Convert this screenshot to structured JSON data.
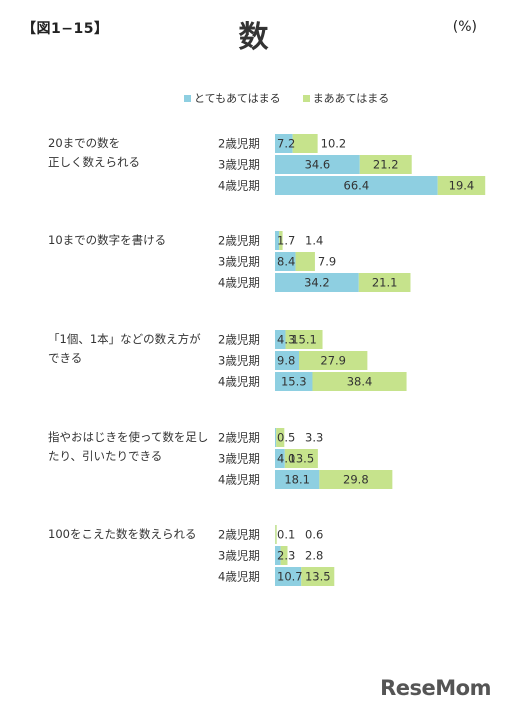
{
  "header": {
    "fig_label": "【図1−15】",
    "title": "数",
    "unit": "(%)"
  },
  "colors": {
    "series1": "#8ecfe1",
    "series2": "#c6e38c"
  },
  "chart_data": {
    "type": "bar",
    "orientation": "horizontal",
    "stacked": true,
    "series": [
      {
        "name": "とてもあてはまる",
        "color": "#8ecfe1"
      },
      {
        "name": "まああてはまる",
        "color": "#c6e38c"
      }
    ],
    "xlim": [
      0,
      100
    ],
    "legend": "top-center",
    "groups": [
      {
        "label_lines": [
          "20までの数を",
          "正しく数えられる"
        ],
        "rows": [
          {
            "label": "2歳児期",
            "values": [
              7.2,
              10.2
            ],
            "texts": [
              "7.2",
              "10.2"
            ]
          },
          {
            "label": "3歳児期",
            "values": [
              34.6,
              21.2
            ],
            "texts": [
              "34.6",
              "21.2"
            ]
          },
          {
            "label": "4歳児期",
            "values": [
              66.4,
              19.4
            ],
            "texts": [
              "66.4",
              "19.4"
            ]
          }
        ]
      },
      {
        "label_lines": [
          "10までの数字を書ける"
        ],
        "rows": [
          {
            "label": "2歳児期",
            "values": [
              1.7,
              1.4
            ],
            "texts": [
              "1.7",
              "1.4"
            ]
          },
          {
            "label": "3歳児期",
            "values": [
              8.4,
              7.9
            ],
            "texts": [
              "8.4",
              "7.9"
            ]
          },
          {
            "label": "4歳児期",
            "values": [
              34.2,
              21.1
            ],
            "texts": [
              "34.2",
              "21.1"
            ]
          }
        ]
      },
      {
        "label_lines": [
          "「1個、1本」などの数え方が",
          "できる"
        ],
        "rows": [
          {
            "label": "2歳児期",
            "values": [
              4.3,
              15.1
            ],
            "texts": [
              "4.3",
              "15.1"
            ]
          },
          {
            "label": "3歳児期",
            "values": [
              9.8,
              27.9
            ],
            "texts": [
              "9.8",
              "27.9"
            ]
          },
          {
            "label": "4歳児期",
            "values": [
              15.3,
              38.4
            ],
            "texts": [
              "15.3",
              "38.4"
            ]
          }
        ]
      },
      {
        "label_lines": [
          "指やおはじきを使って数を足し",
          "たり、引いたりできる"
        ],
        "rows": [
          {
            "label": "2歳児期",
            "values": [
              0.5,
              3.3
            ],
            "texts": [
              "0.5",
              "3.3"
            ]
          },
          {
            "label": "3歳児期",
            "values": [
              4.0,
              13.5
            ],
            "texts": [
              "4.0",
              "13.5"
            ]
          },
          {
            "label": "4歳児期",
            "values": [
              18.1,
              29.8
            ],
            "texts": [
              "18.1",
              "29.8"
            ]
          }
        ]
      },
      {
        "label_lines": [
          "100をこえた数を数えられる"
        ],
        "rows": [
          {
            "label": "2歳児期",
            "values": [
              0.1,
              0.6
            ],
            "texts": [
              "0.1",
              "0.6"
            ]
          },
          {
            "label": "3歳児期",
            "values": [
              2.3,
              2.8
            ],
            "texts": [
              "2.3",
              "2.8"
            ]
          },
          {
            "label": "4歳児期",
            "values": [
              10.7,
              13.5
            ],
            "texts": [
              "10.7",
              "13.5"
            ]
          }
        ]
      }
    ]
  },
  "watermark": "ReseMom"
}
